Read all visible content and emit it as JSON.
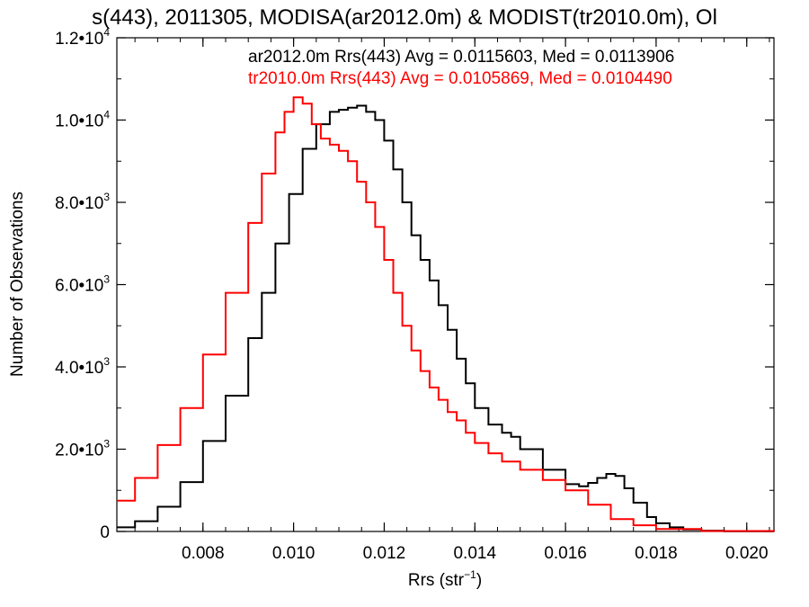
{
  "chart_data": {
    "type": "line",
    "title": "s(443), 2011305, MODISA(ar2012.0m) & MODIST(tr2010.0m), Ol",
    "xlabel_main": "Rrs (str",
    "xlabel_sup": "−1",
    "xlabel_end": ")",
    "ylabel": "Number of Observations",
    "xlim": [
      0.0061,
      0.0206
    ],
    "ylim": [
      0,
      12000
    ],
    "x_ticks": [
      0.008,
      0.01,
      0.012,
      0.014,
      0.016,
      0.018,
      0.02
    ],
    "x_tick_labels": [
      "0.008",
      "0.010",
      "0.012",
      "0.014",
      "0.016",
      "0.018",
      "0.020"
    ],
    "y_ticks": [
      {
        "value": 0,
        "mantissa": "0",
        "exp": ""
      },
      {
        "value": 2000,
        "mantissa": "2.0•10",
        "exp": "3"
      },
      {
        "value": 4000,
        "mantissa": "4.0•10",
        "exp": "3"
      },
      {
        "value": 6000,
        "mantissa": "6.0•10",
        "exp": "3"
      },
      {
        "value": 8000,
        "mantissa": "8.0•10",
        "exp": "3"
      },
      {
        "value": 10000,
        "mantissa": "1.0•10",
        "exp": "4"
      },
      {
        "value": 12000,
        "mantissa": "1.2•10",
        "exp": "4"
      }
    ],
    "legend": [
      {
        "text": "ar2012.0m Rrs(443) Avg = 0.0115603, Med = 0.0113906",
        "color": "#000000"
      },
      {
        "text": "tr2010.0m Rrs(443) Avg = 0.0105869, Med = 0.0104490",
        "color": "#ff0000"
      }
    ],
    "series": [
      {
        "color": "#000000",
        "x": [
          0.0061,
          0.0065,
          0.007,
          0.0075,
          0.008,
          0.0085,
          0.009,
          0.0093,
          0.0096,
          0.0099,
          0.0102,
          0.0105,
          0.0108,
          0.011,
          0.0112,
          0.0114,
          0.0116,
          0.0118,
          0.012,
          0.0122,
          0.0124,
          0.0126,
          0.0128,
          0.013,
          0.0132,
          0.0134,
          0.0136,
          0.0138,
          0.014,
          0.0143,
          0.0146,
          0.0148,
          0.015,
          0.0155,
          0.016,
          0.0163,
          0.0165,
          0.0167,
          0.0169,
          0.0171,
          0.0173,
          0.0175,
          0.0178,
          0.018,
          0.0183,
          0.0186,
          0.019,
          0.0195,
          0.0206
        ],
        "values": [
          100,
          250,
          600,
          1200,
          2200,
          3300,
          4700,
          5800,
          7000,
          8200,
          9300,
          9900,
          10200,
          10250,
          10300,
          10350,
          10200,
          10000,
          9500,
          8800,
          8000,
          7200,
          6600,
          6100,
          5500,
          4900,
          4200,
          3600,
          3000,
          2600,
          2400,
          2300,
          2000,
          1500,
          1150,
          1100,
          1180,
          1300,
          1400,
          1350,
          1050,
          700,
          350,
          200,
          100,
          50,
          20,
          5,
          0
        ]
      },
      {
        "color": "#ff0000",
        "x": [
          0.0061,
          0.0065,
          0.007,
          0.0075,
          0.008,
          0.0085,
          0.009,
          0.0093,
          0.0096,
          0.0098,
          0.01,
          0.0102,
          0.0104,
          0.0106,
          0.0108,
          0.011,
          0.0112,
          0.0114,
          0.0116,
          0.0118,
          0.012,
          0.0122,
          0.0124,
          0.0126,
          0.0128,
          0.013,
          0.0132,
          0.0134,
          0.0136,
          0.0138,
          0.014,
          0.0143,
          0.0146,
          0.015,
          0.0155,
          0.016,
          0.0165,
          0.017,
          0.0175,
          0.018,
          0.019,
          0.0206
        ],
        "values": [
          750,
          1300,
          2100,
          3000,
          4300,
          5800,
          7500,
          8700,
          9700,
          10200,
          10550,
          10400,
          9900,
          9550,
          9400,
          9250,
          9000,
          8500,
          8000,
          7400,
          6600,
          5800,
          5000,
          4400,
          3900,
          3500,
          3200,
          2900,
          2700,
          2400,
          2150,
          1900,
          1700,
          1500,
          1250,
          1000,
          650,
          300,
          150,
          60,
          10,
          0
        ]
      }
    ]
  }
}
